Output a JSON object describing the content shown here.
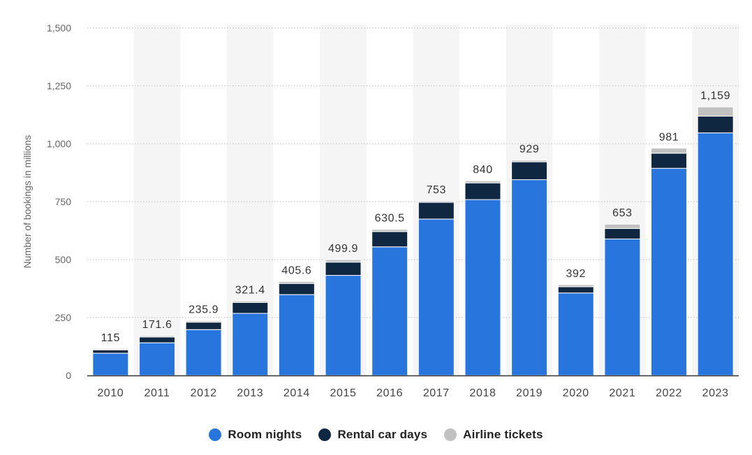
{
  "chart_data": {
    "type": "bar",
    "stacked": true,
    "ylabel": "Number of bookings in millions",
    "xlabel": "",
    "ylim": [
      0,
      1500
    ],
    "yticks": [
      0,
      250,
      500,
      750,
      1000,
      1250,
      1500
    ],
    "ytick_labels": [
      "0",
      "250",
      "500",
      "750",
      "1,000",
      "1,250",
      "1,500"
    ],
    "grid": true,
    "legend_position": "bottom-center",
    "categories": [
      "2010",
      "2011",
      "2012",
      "2013",
      "2014",
      "2015",
      "2016",
      "2017",
      "2018",
      "2019",
      "2020",
      "2021",
      "2022",
      "2023"
    ],
    "series": [
      {
        "name": "Room nights",
        "color": "#2876dd",
        "values": [
          96,
          141,
          198,
          268,
          349,
          432,
          555,
          675,
          759,
          845,
          356,
          589,
          894,
          1047
        ]
      },
      {
        "name": "Rental car days",
        "color": "#0f2741",
        "values": [
          14,
          25,
          32,
          47,
          48,
          57,
          66,
          72,
          72,
          77,
          27,
          45,
          65,
          72
        ]
      },
      {
        "name": "Airline tickets",
        "color": "#c1c1c1",
        "values": [
          5,
          5.6,
          5.9,
          6.4,
          8.6,
          10.9,
          9.5,
          6,
          9,
          7,
          9,
          19,
          22,
          40
        ]
      }
    ],
    "totals": [
      115,
      171.6,
      235.9,
      321.4,
      405.6,
      499.9,
      630.5,
      753,
      840,
      929,
      392,
      653,
      981,
      1159
    ],
    "total_labels": [
      "115",
      "171.6",
      "235.9",
      "321.4",
      "405.6",
      "499.9",
      "630.5",
      "753",
      "840",
      "929",
      "392",
      "653",
      "981",
      "1,159"
    ]
  }
}
